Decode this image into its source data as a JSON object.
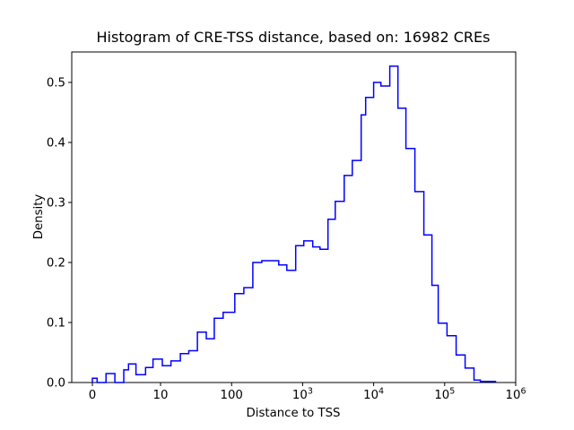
{
  "figure": {
    "background": "#ffffff",
    "frame_color": "#000000"
  },
  "chart_data": {
    "type": "step-histogram",
    "title": "Histogram of CRE-TSS distance, based on: 16982 CREs",
    "xlabel": "Distance to TSS",
    "ylabel": "Density",
    "cre_count": 16982,
    "line_color": "#0000ff",
    "x_scale": "symlog",
    "grid": false,
    "legend": "none",
    "ylim": [
      0.0,
      0.55
    ],
    "x_ticks": [
      {
        "v": 0,
        "t": "0"
      },
      {
        "v": 10,
        "t": "10"
      },
      {
        "v": 100,
        "t": "100"
      },
      {
        "v": 1000,
        "t": "10",
        "e": "3"
      },
      {
        "v": 10000,
        "t": "10",
        "e": "4"
      },
      {
        "v": 100000,
        "t": "10",
        "e": "5"
      },
      {
        "v": 1000000,
        "t": "10",
        "e": "6"
      }
    ],
    "y_ticks": [
      {
        "v": 0.0,
        "t": "0.0"
      },
      {
        "v": 0.1,
        "t": "0.1"
      },
      {
        "v": 0.2,
        "t": "0.2"
      },
      {
        "v": 0.3,
        "t": "0.3"
      },
      {
        "v": 0.4,
        "t": "0.4"
      },
      {
        "v": 0.5,
        "t": "0.5"
      }
    ],
    "bin_edges": [
      0,
      0.7,
      2,
      3.3,
      4.6,
      5.3,
      6.4,
      7.8,
      8.9,
      10.6,
      14,
      19,
      25,
      33,
      44,
      57,
      76,
      111,
      149,
      199,
      266,
      462,
      600,
      800,
      1040,
      1390,
      1760,
      2280,
      2880,
      3850,
      5000,
      6680,
      7720,
      10000,
      12650,
      16900,
      22000,
      28500,
      38100,
      51000,
      66200,
      81100,
      108000,
      145000,
      194000,
      259000,
      318000,
      520000
    ],
    "densities": [
      0.007,
      0,
      0.015,
      0,
      0.021,
      0.031,
      0.013,
      0.025,
      0.039,
      0.028,
      0.036,
      0.048,
      0.053,
      0.084,
      0.073,
      0.107,
      0.117,
      0.148,
      0.158,
      0.2,
      0.203,
      0.196,
      0.187,
      0.228,
      0.236,
      0.226,
      0.222,
      0.272,
      0.302,
      0.345,
      0.37,
      0.446,
      0.475,
      0.5,
      0.494,
      0.527,
      0.457,
      0.39,
      0.318,
      0.246,
      0.162,
      0.099,
      0.078,
      0.046,
      0.024,
      0.004,
      0.002
    ]
  }
}
